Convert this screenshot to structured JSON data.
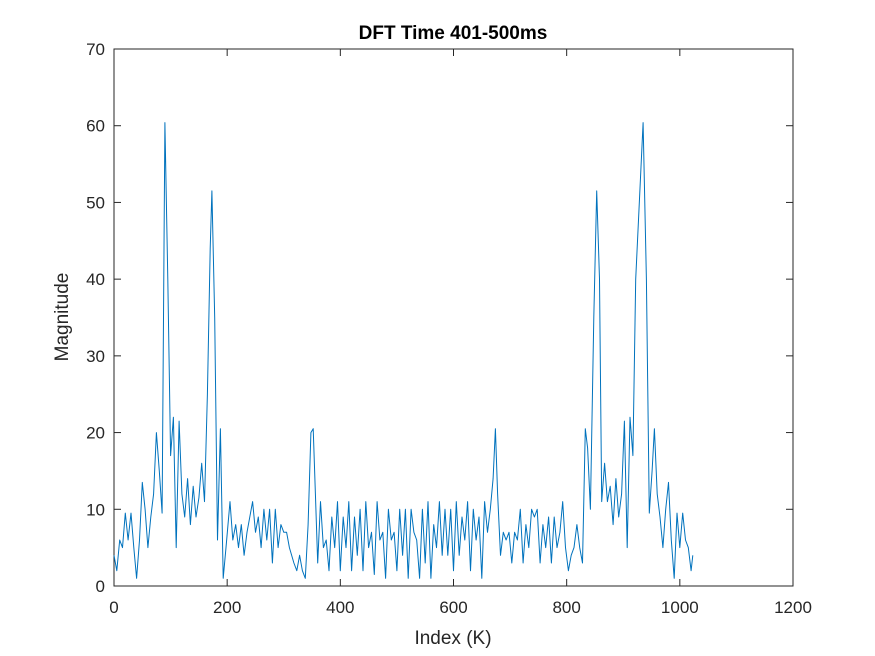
{
  "chart_data": {
    "type": "line",
    "title": "DFT Time 401-500ms",
    "xlabel": "Index (K)",
    "ylabel": "Magnitude",
    "xlim": [
      0,
      1200
    ],
    "ylim": [
      0,
      70
    ],
    "xticks": [
      0,
      200,
      400,
      600,
      800,
      1000,
      1200
    ],
    "yticks": [
      0,
      10,
      20,
      30,
      40,
      50,
      60,
      70
    ],
    "grid": false,
    "legend": "none",
    "series": [
      {
        "color": "#0072BD",
        "points": [
          [
            0,
            4
          ],
          [
            5,
            2
          ],
          [
            10,
            6
          ],
          [
            15,
            5
          ],
          [
            20,
            9.5
          ],
          [
            25,
            6
          ],
          [
            30,
            9.5
          ],
          [
            35,
            5
          ],
          [
            40,
            1
          ],
          [
            45,
            6
          ],
          [
            50,
            13.5
          ],
          [
            55,
            10
          ],
          [
            60,
            5
          ],
          [
            65,
            9
          ],
          [
            70,
            12
          ],
          [
            75,
            20
          ],
          [
            80,
            15
          ],
          [
            85,
            9.5
          ],
          [
            90,
            60.4
          ],
          [
            95,
            40
          ],
          [
            100,
            17
          ],
          [
            105,
            22
          ],
          [
            110,
            5
          ],
          [
            115,
            21.5
          ],
          [
            120,
            12
          ],
          [
            125,
            9
          ],
          [
            130,
            14
          ],
          [
            135,
            8
          ],
          [
            140,
            13
          ],
          [
            145,
            9
          ],
          [
            150,
            11.5
          ],
          [
            155,
            16
          ],
          [
            160,
            11
          ],
          [
            165,
            25
          ],
          [
            170,
            44
          ],
          [
            173,
            51.5
          ],
          [
            178,
            35
          ],
          [
            183,
            6
          ],
          [
            188,
            20.5
          ],
          [
            193,
            1
          ],
          [
            198,
            5
          ],
          [
            205,
            11
          ],
          [
            210,
            6
          ],
          [
            215,
            8
          ],
          [
            220,
            5
          ],
          [
            225,
            8
          ],
          [
            230,
            4
          ],
          [
            235,
            7
          ],
          [
            245,
            11
          ],
          [
            250,
            7
          ],
          [
            255,
            9
          ],
          [
            260,
            5
          ],
          [
            265,
            10
          ],
          [
            270,
            6
          ],
          [
            275,
            10
          ],
          [
            280,
            3
          ],
          [
            285,
            10
          ],
          [
            290,
            5
          ],
          [
            295,
            8
          ],
          [
            300,
            7
          ],
          [
            305,
            7
          ],
          [
            310,
            5
          ],
          [
            318,
            3
          ],
          [
            323,
            2
          ],
          [
            328,
            4
          ],
          [
            333,
            2
          ],
          [
            338,
            1
          ],
          [
            343,
            8
          ],
          [
            348,
            20
          ],
          [
            352,
            20.5
          ],
          [
            356,
            12
          ],
          [
            360,
            3
          ],
          [
            365,
            11
          ],
          [
            370,
            5
          ],
          [
            375,
            6
          ],
          [
            380,
            2
          ],
          [
            385,
            9
          ],
          [
            390,
            5
          ],
          [
            395,
            11
          ],
          [
            400,
            2
          ],
          [
            405,
            9
          ],
          [
            410,
            5
          ],
          [
            415,
            11
          ],
          [
            420,
            2
          ],
          [
            425,
            9
          ],
          [
            430,
            4
          ],
          [
            435,
            10
          ],
          [
            440,
            2
          ],
          [
            445,
            11
          ],
          [
            450,
            5
          ],
          [
            455,
            7
          ],
          [
            460,
            1.5
          ],
          [
            465,
            11
          ],
          [
            470,
            6
          ],
          [
            475,
            7
          ],
          [
            480,
            1
          ],
          [
            485,
            10
          ],
          [
            490,
            6
          ],
          [
            495,
            7
          ],
          [
            500,
            2
          ],
          [
            505,
            10
          ],
          [
            510,
            4
          ],
          [
            515,
            10
          ],
          [
            520,
            1
          ],
          [
            525,
            10
          ],
          [
            530,
            7
          ],
          [
            535,
            6
          ],
          [
            540,
            1
          ],
          [
            545,
            10
          ],
          [
            550,
            3
          ],
          [
            555,
            11
          ],
          [
            560,
            1
          ],
          [
            565,
            8
          ],
          [
            570,
            5
          ],
          [
            575,
            11
          ],
          [
            580,
            4
          ],
          [
            585,
            10
          ],
          [
            590,
            4
          ],
          [
            595,
            10
          ],
          [
            600,
            2
          ],
          [
            605,
            11
          ],
          [
            610,
            4
          ],
          [
            615,
            9
          ],
          [
            620,
            6
          ],
          [
            625,
            11
          ],
          [
            630,
            2
          ],
          [
            635,
            10
          ],
          [
            640,
            6
          ],
          [
            645,
            9
          ],
          [
            650,
            1
          ],
          [
            655,
            11
          ],
          [
            660,
            7
          ],
          [
            665,
            10
          ],
          [
            670,
            14
          ],
          [
            674,
            20.5
          ],
          [
            678,
            12
          ],
          [
            683,
            4
          ],
          [
            688,
            7
          ],
          [
            693,
            6
          ],
          [
            698,
            7
          ],
          [
            703,
            3
          ],
          [
            708,
            7
          ],
          [
            713,
            6
          ],
          [
            718,
            10
          ],
          [
            723,
            3
          ],
          [
            728,
            8
          ],
          [
            733,
            5
          ],
          [
            738,
            10
          ],
          [
            743,
            9
          ],
          [
            748,
            10
          ],
          [
            753,
            3
          ],
          [
            758,
            8
          ],
          [
            763,
            5
          ],
          [
            768,
            9
          ],
          [
            773,
            3
          ],
          [
            778,
            9
          ],
          [
            783,
            5
          ],
          [
            788,
            7
          ],
          [
            793,
            11
          ],
          [
            798,
            5
          ],
          [
            803,
            2
          ],
          [
            808,
            4
          ],
          [
            813,
            5
          ],
          [
            818,
            8
          ],
          [
            823,
            5
          ],
          [
            828,
            3
          ],
          [
            833,
            20.5
          ],
          [
            837,
            18
          ],
          [
            842,
            10
          ],
          [
            848,
            35
          ],
          [
            853,
            51.5
          ],
          [
            858,
            40
          ],
          [
            862,
            11
          ],
          [
            867,
            16
          ],
          [
            872,
            11
          ],
          [
            877,
            13
          ],
          [
            882,
            8
          ],
          [
            887,
            14
          ],
          [
            892,
            9
          ],
          [
            897,
            12
          ],
          [
            902,
            21.5
          ],
          [
            907,
            5
          ],
          [
            912,
            22
          ],
          [
            917,
            17
          ],
          [
            922,
            40
          ],
          [
            935,
            60.4
          ],
          [
            941,
            40
          ],
          [
            946,
            9.5
          ],
          [
            951,
            15
          ],
          [
            955,
            20.5
          ],
          [
            960,
            12
          ],
          [
            965,
            9
          ],
          [
            970,
            5
          ],
          [
            975,
            10
          ],
          [
            980,
            13.5
          ],
          [
            985,
            6
          ],
          [
            990,
            1
          ],
          [
            995,
            9.5
          ],
          [
            1000,
            5
          ],
          [
            1005,
            9.5
          ],
          [
            1010,
            6
          ],
          [
            1015,
            5
          ],
          [
            1020,
            2
          ],
          [
            1023,
            4
          ]
        ]
      }
    ]
  }
}
